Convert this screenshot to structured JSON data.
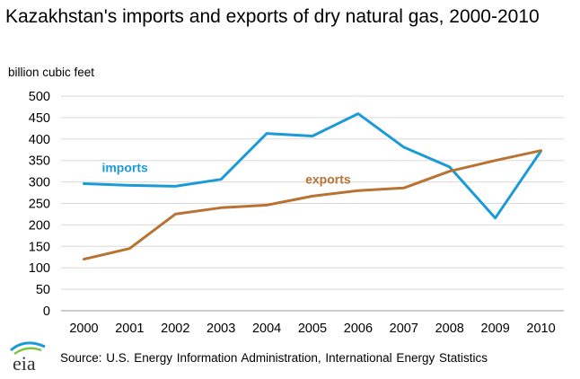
{
  "title": "Kazakhstan's imports and exports of dry natural gas, 2000-2010",
  "source": "Source: U.S. Energy Information Administration, International Energy Statistics",
  "logo_text": "eia",
  "chart_data": {
    "type": "line",
    "title": "Kazakhstan's imports and exports of dry natural gas, 2000-2010",
    "ylabel": "billion cubic feet",
    "xlabel": "",
    "categories": [
      "2000",
      "2001",
      "2002",
      "2003",
      "2004",
      "2005",
      "2006",
      "2007",
      "2008",
      "2009",
      "2010"
    ],
    "yticks": [
      "0",
      "50",
      "100",
      "150",
      "200",
      "250",
      "300",
      "350",
      "400",
      "450",
      "500"
    ],
    "ylim": [
      0,
      500
    ],
    "grid": true,
    "legend": "inline labels",
    "series": [
      {
        "name": "imports",
        "color": "#1a9bd7",
        "values": [
          296,
          292,
          290,
          306,
          413,
          407,
          459,
          381,
          335,
          216,
          372
        ]
      },
      {
        "name": "exports",
        "color": "#b87333",
        "values": [
          120,
          145,
          225,
          240,
          246,
          267,
          280,
          286,
          325,
          350,
          373
        ]
      }
    ]
  }
}
